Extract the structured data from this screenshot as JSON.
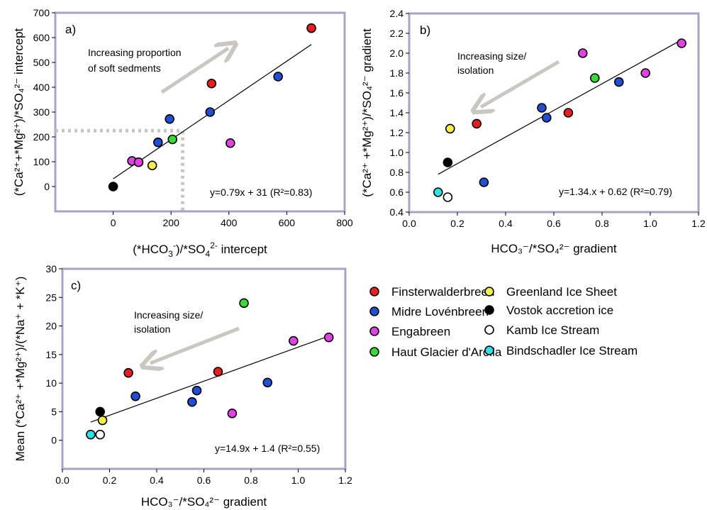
{
  "legend": [
    {
      "name": "Finsterwalderbreen",
      "color": "#ee1c1c",
      "hollow": false
    },
    {
      "name": "Midre Lovénbreen",
      "color": "#1f4fd8",
      "hollow": false
    },
    {
      "name": "Engabreen",
      "color": "#e63fe6",
      "hollow": false
    },
    {
      "name": "Haut Glacier d'Arolla",
      "color": "#33dd33",
      "hollow": false
    },
    {
      "name": "Greenland Ice Sheet",
      "color": "#f5f040",
      "hollow": false
    },
    {
      "name": "Vostok accretion ice",
      "color": "#000000",
      "hollow": false
    },
    {
      "name": "Kamb Ice Stream",
      "color": "#ffffff",
      "hollow": true
    },
    {
      "name": "Bindschadler Ice Stream",
      "color": "#29e3e8",
      "hollow": false
    }
  ],
  "chart_data": [
    {
      "type": "scatter",
      "panel_label": "a)",
      "xlabel": {
        "pre": "(*HCO",
        "sub": "3",
        "sup1": "-",
        "mid": ")/*SO",
        "sub2": "4",
        "sup2": "2-",
        "post": " intercept"
      },
      "ylabel": "(*Ca²⁺+*Mg²⁺)/*SO₄²⁻ intercept",
      "xlim": [
        -200,
        800
      ],
      "ylim": [
        -100,
        700
      ],
      "xticks": [
        "0",
        "200",
        "400",
        "600",
        "800"
      ],
      "yticks": [
        "0",
        "100",
        "200",
        "300",
        "400",
        "500",
        "600",
        "700"
      ],
      "annotation": [
        "Increasing proportion",
        "of soft sedments"
      ],
      "equation": "y=0.79x + 31 (R²=0.83)",
      "trendline": {
        "slope": 0.79,
        "intercept": 31,
        "x_range": [
          0,
          685
        ]
      },
      "reference_point": [
        240,
        225
      ],
      "points": [
        {
          "series": "Finsterwalderbreen",
          "x": 685,
          "y": 638
        },
        {
          "series": "Finsterwalderbreen",
          "x": 340,
          "y": 415
        },
        {
          "series": "Midre Lovénbreen",
          "x": 570,
          "y": 443
        },
        {
          "series": "Midre Lovénbreen",
          "x": 335,
          "y": 300
        },
        {
          "series": "Midre Lovénbreen",
          "x": 195,
          "y": 272
        },
        {
          "series": "Midre Lovénbreen",
          "x": 155,
          "y": 178
        },
        {
          "series": "Engabreen",
          "x": 65,
          "y": 103
        },
        {
          "series": "Engabreen",
          "x": 88,
          "y": 98
        },
        {
          "series": "Engabreen",
          "x": 405,
          "y": 175
        },
        {
          "series": "Haut Glacier d'Arolla",
          "x": 205,
          "y": 190
        },
        {
          "series": "Greenland Ice Sheet",
          "x": 135,
          "y": 85
        },
        {
          "series": "Vostok accretion ice",
          "x": 0,
          "y": 0
        }
      ]
    },
    {
      "type": "scatter",
      "panel_label": "b)",
      "xlabel": "HCO₃⁻/*SO₄²⁻ gradient",
      "ylabel": "(*Ca²⁺ +*Mg²⁺)/*SO₄²⁻ gradient",
      "xlim": [
        0.0,
        1.2
      ],
      "ylim": [
        0.4,
        2.4
      ],
      "xticks": [
        "0.0",
        "0.2",
        "0.4",
        "0.6",
        "0.8",
        "1.0",
        "1.2"
      ],
      "yticks": [
        "0.4",
        "0.6",
        "0.8",
        "1.0",
        "1.2",
        "1.4",
        "1.6",
        "1.8",
        "2.0",
        "2.2",
        "2.4"
      ],
      "annotation": [
        "Increasing size/",
        "isolation"
      ],
      "equation": "y=1.34.x + 0.62 (R²=0.79)",
      "trendline": {
        "slope": 1.34,
        "intercept": 0.62,
        "x_range": [
          0.12,
          1.13
        ]
      },
      "points": [
        {
          "series": "Finsterwalderbreen",
          "x": 0.28,
          "y": 1.29
        },
        {
          "series": "Finsterwalderbreen",
          "x": 0.66,
          "y": 1.4
        },
        {
          "series": "Midre Lovénbreen",
          "x": 0.55,
          "y": 1.45
        },
        {
          "series": "Midre Lovénbreen",
          "x": 0.57,
          "y": 1.35
        },
        {
          "series": "Midre Lovénbreen",
          "x": 0.87,
          "y": 1.71
        },
        {
          "series": "Midre Lovénbreen",
          "x": 0.31,
          "y": 0.7
        },
        {
          "series": "Engabreen",
          "x": 0.72,
          "y": 2.0
        },
        {
          "series": "Engabreen",
          "x": 1.13,
          "y": 2.1
        },
        {
          "series": "Engabreen",
          "x": 0.98,
          "y": 1.8
        },
        {
          "series": "Haut Glacier d'Arolla",
          "x": 0.77,
          "y": 1.75
        },
        {
          "series": "Greenland Ice Sheet",
          "x": 0.17,
          "y": 1.24
        },
        {
          "series": "Vostok accretion ice",
          "x": 0.16,
          "y": 0.9
        },
        {
          "series": "Kamb Ice Stream",
          "x": 0.16,
          "y": 0.55
        },
        {
          "series": "Bindschadler Ice Stream",
          "x": 0.12,
          "y": 0.6
        }
      ]
    },
    {
      "type": "scatter",
      "panel_label": "c)",
      "xlabel": "HCO₃⁻/*SO₄²⁻ gradient",
      "ylabel": "Mean (*Ca²⁺ +*Mg²⁺)/(*Na⁺ + *K⁺)",
      "xlim": [
        0.0,
        1.2
      ],
      "ylim": [
        -5,
        30
      ],
      "xticks": [
        "0.0",
        "0.2",
        "0.4",
        "0.6",
        "0.8",
        "1.0",
        "1.2"
      ],
      "yticks": [
        "0",
        "5",
        "10",
        "15",
        "20",
        "25",
        "30"
      ],
      "annotation": [
        "Increasing size/",
        "isolation"
      ],
      "equation": "y=14.9x + 1.4 (R²=0.55)",
      "trendline": {
        "slope": 14.9,
        "intercept": 1.4,
        "x_range": [
          0.12,
          1.13
        ]
      },
      "points": [
        {
          "series": "Finsterwalderbreen",
          "x": 0.28,
          "y": 11.8
        },
        {
          "series": "Finsterwalderbreen",
          "x": 0.66,
          "y": 12.0
        },
        {
          "series": "Midre Lovénbreen",
          "x": 0.31,
          "y": 7.7
        },
        {
          "series": "Midre Lovénbreen",
          "x": 0.57,
          "y": 8.7
        },
        {
          "series": "Midre Lovénbreen",
          "x": 0.55,
          "y": 6.7
        },
        {
          "series": "Midre Lovénbreen",
          "x": 0.87,
          "y": 10.1
        },
        {
          "series": "Engabreen",
          "x": 0.72,
          "y": 4.7
        },
        {
          "series": "Engabreen",
          "x": 0.98,
          "y": 17.4
        },
        {
          "series": "Engabreen",
          "x": 1.13,
          "y": 18.0
        },
        {
          "series": "Haut Glacier d'Arolla",
          "x": 0.77,
          "y": 24.0
        },
        {
          "series": "Greenland Ice Sheet",
          "x": 0.17,
          "y": 3.5
        },
        {
          "series": "Vostok accretion ice",
          "x": 0.16,
          "y": 5.0
        },
        {
          "series": "Kamb Ice Stream",
          "x": 0.16,
          "y": 1.0
        },
        {
          "series": "Bindschadler Ice Stream",
          "x": 0.12,
          "y": 1.0
        }
      ]
    }
  ]
}
